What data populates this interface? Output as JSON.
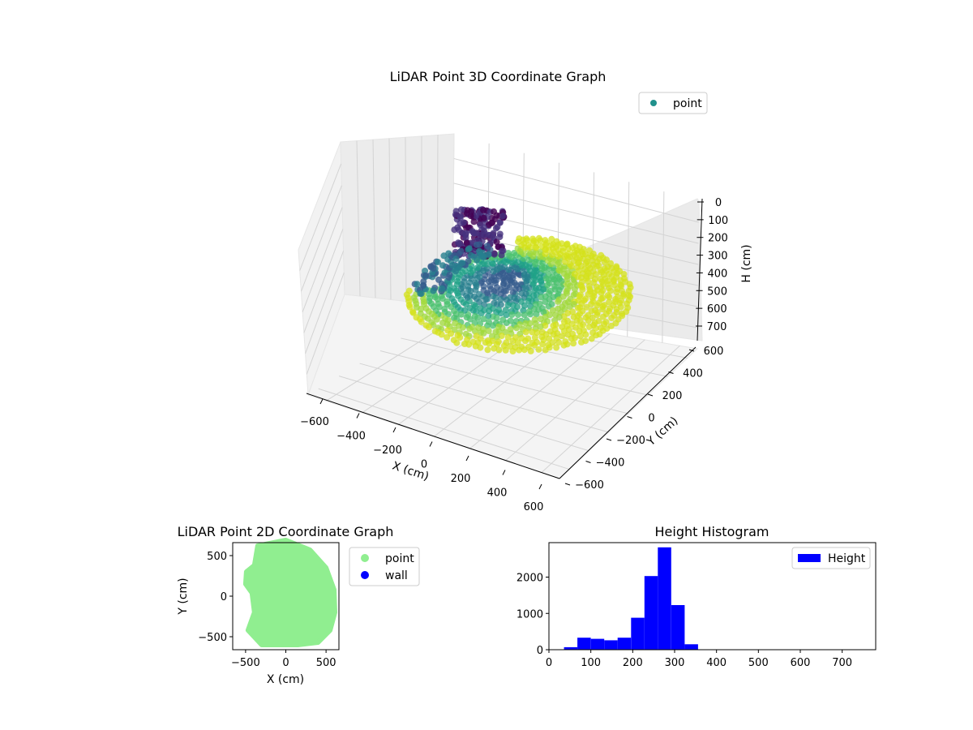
{
  "chart_data": [
    {
      "type": "scatter",
      "projection": "3d",
      "title": "LiDAR Point 3D Coordinate Graph",
      "xlabel": "X (cm)",
      "ylabel": "Y (cm)",
      "zlabel": "H (cm)",
      "xlim": [
        -600,
        600
      ],
      "ylim": [
        -600,
        600
      ],
      "zlim": [
        0,
        700
      ],
      "z_inverted": true,
      "xticks": [
        "−600",
        "−400",
        "−200",
        "0",
        "200",
        "400",
        "600"
      ],
      "yticks": [
        "−600",
        "−400",
        "−200",
        "0",
        "200",
        "400",
        "600"
      ],
      "zticks": [
        "0",
        "100",
        "200",
        "300",
        "400",
        "500",
        "600",
        "700"
      ],
      "grid": true,
      "colormap": "viridis",
      "legend": {
        "placement": "top-right",
        "entries": [
          {
            "label": "point",
            "color": "#21918c"
          }
        ]
      },
      "series": [
        {
          "name": "point",
          "note_shape": "roughly disc-shaped cloud of points, radius about 600 cm, heights mostly 200–330 cm"
        }
      ]
    },
    {
      "type": "scatter",
      "title": "LiDAR Point 2D Coordinate Graph",
      "xlabel": "X (cm)",
      "ylabel": "Y (cm)",
      "xlim": [
        -660,
        660
      ],
      "ylim": [
        -660,
        660
      ],
      "xticks": [
        "−500",
        "0",
        "500"
      ],
      "yticks": [
        "−500",
        "0",
        "500"
      ],
      "legend": {
        "placement": "outside-right",
        "entries": [
          {
            "label": "point",
            "color": "#90ee90"
          },
          {
            "label": "wall",
            "color": "#0000ff"
          }
        ]
      },
      "series": [
        {
          "name": "point",
          "color": "#90ee90",
          "outline": [
            [
              -350,
              620
            ],
            [
              0,
              690
            ],
            [
              300,
              570
            ],
            [
              500,
              350
            ],
            [
              600,
              80
            ],
            [
              610,
              -200
            ],
            [
              550,
              -420
            ],
            [
              400,
              -570
            ],
            [
              150,
              -600
            ],
            [
              -300,
              -600
            ],
            [
              -470,
              -420
            ],
            [
              -390,
              -200
            ],
            [
              -420,
              40
            ],
            [
              -500,
              150
            ],
            [
              -490,
              300
            ],
            [
              -390,
              380
            ]
          ]
        },
        {
          "name": "wall",
          "color": "#0000ff",
          "points": []
        }
      ]
    },
    {
      "type": "bar",
      "subtype": "histogram",
      "title": "Height Histogram",
      "xlim": [
        0,
        780
      ],
      "ylim": [
        0,
        2950
      ],
      "xticks": [
        0,
        100,
        200,
        300,
        400,
        500,
        600,
        700
      ],
      "yticks": [
        0,
        1000,
        2000
      ],
      "legend": {
        "placement": "top-right",
        "entries": [
          {
            "label": "Height",
            "color": "#0000ff"
          }
        ]
      },
      "series": [
        {
          "name": "Height",
          "color": "#0000ff",
          "bin_edges": [
            36,
            68,
            100,
            132,
            164,
            196,
            228,
            260,
            292,
            324,
            356
          ],
          "values": [
            70,
            330,
            300,
            260,
            330,
            880,
            2030,
            2820,
            1230,
            150
          ]
        }
      ]
    }
  ]
}
